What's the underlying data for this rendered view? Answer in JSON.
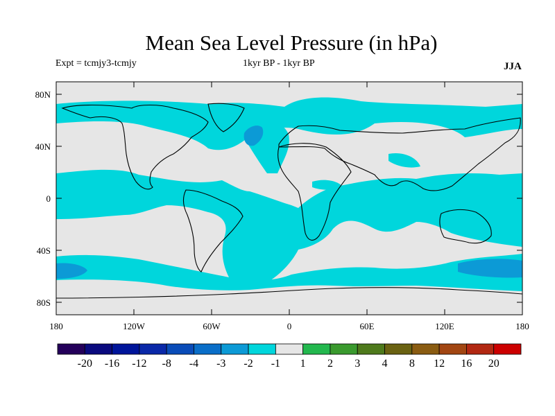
{
  "title": "Mean Sea Level Pressure (in hPa)",
  "subtitle_left": "Expt = tcmjy3-tcmjy",
  "subtitle_center": "1kyr BP - 1kyr BP",
  "subtitle_right": "JJA",
  "y_axis": [
    "80N",
    "40N",
    "0",
    "40S",
    "80S"
  ],
  "x_axis": [
    "180",
    "120W",
    "60W",
    "0",
    "60E",
    "120E",
    "180"
  ],
  "colorbar": {
    "colors": [
      "#24005a",
      "#0a0a7e",
      "#00159a",
      "#0a28a8",
      "#0a4cb8",
      "#0a6ec8",
      "#0c9ad6",
      "#00d6dc",
      "#e6e6e6",
      "#23b84e",
      "#3a9a2e",
      "#4e7a1c",
      "#6a6212",
      "#8a5c12",
      "#a24612",
      "#b22812",
      "#cc0000"
    ],
    "labels": [
      "-20",
      "-16",
      "-12",
      "-8",
      "-4",
      "-3",
      "-2",
      "-1",
      "1",
      "2",
      "3",
      "4",
      "8",
      "12",
      "16",
      "20"
    ]
  },
  "map": {
    "background_color": "#e6e6e6",
    "shade_light": "#00d6dc",
    "shade_dark": "#0c9ad6"
  }
}
